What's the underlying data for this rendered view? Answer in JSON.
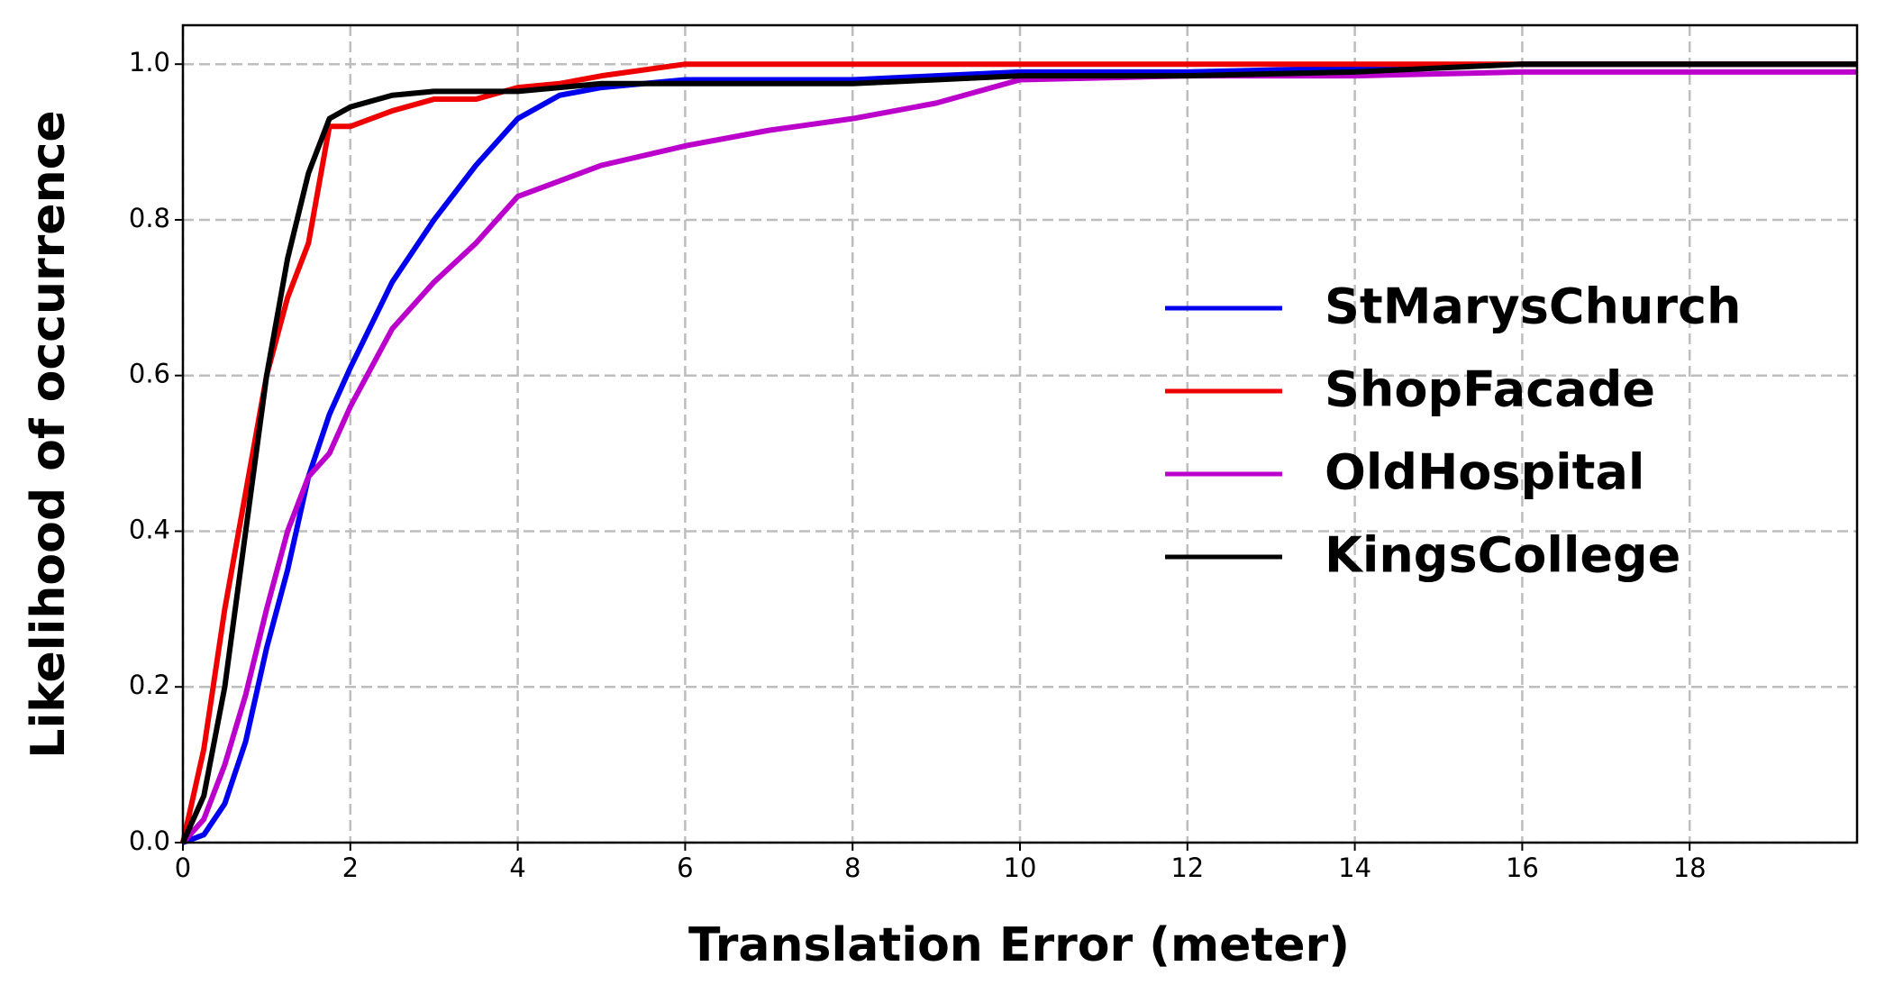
{
  "chart_data": {
    "type": "line",
    "xlabel": "Translation Error (meter)",
    "ylabel": "Likelihood of occurrence",
    "x": [
      0,
      0.25,
      0.5,
      0.75,
      1,
      1.25,
      1.5,
      1.75,
      2,
      2.5,
      3,
      3.5,
      4,
      4.5,
      5,
      6,
      7,
      8,
      9,
      10,
      12,
      14,
      16,
      18,
      20
    ],
    "series": [
      {
        "name": "StMarysChurch",
        "color": "#0000ee",
        "values": [
          0,
          0.01,
          0.05,
          0.13,
          0.25,
          0.35,
          0.47,
          0.55,
          0.61,
          0.72,
          0.8,
          0.87,
          0.93,
          0.96,
          0.97,
          0.98,
          0.98,
          0.98,
          0.985,
          0.99,
          0.99,
          0.995,
          1.0,
          1.0,
          1.0
        ]
      },
      {
        "name": "ShopFacade",
        "color": "#ee0000",
        "values": [
          0,
          0.12,
          0.3,
          0.45,
          0.6,
          0.7,
          0.77,
          0.92,
          0.92,
          0.94,
          0.955,
          0.955,
          0.97,
          0.975,
          0.985,
          1.0,
          1.0,
          1.0,
          1.0,
          1.0,
          1.0,
          1.0,
          1.0,
          1.0,
          1.0
        ]
      },
      {
        "name": "OldHospital",
        "color": "#bb00cc",
        "values": [
          0,
          0.03,
          0.1,
          0.19,
          0.3,
          0.4,
          0.47,
          0.5,
          0.56,
          0.66,
          0.72,
          0.77,
          0.83,
          0.85,
          0.87,
          0.895,
          0.915,
          0.93,
          0.95,
          0.98,
          0.985,
          0.985,
          0.99,
          0.99,
          0.99
        ]
      },
      {
        "name": "KingsCollege",
        "color": "#000000",
        "values": [
          0,
          0.06,
          0.2,
          0.4,
          0.6,
          0.75,
          0.86,
          0.93,
          0.945,
          0.96,
          0.965,
          0.965,
          0.965,
          0.97,
          0.975,
          0.975,
          0.975,
          0.975,
          0.98,
          0.985,
          0.985,
          0.99,
          1.0,
          1.0,
          1.0
        ]
      }
    ],
    "xlim": [
      0,
      20
    ],
    "ylim": [
      0,
      1.05
    ],
    "xticks": [
      0,
      2,
      4,
      6,
      8,
      10,
      12,
      14,
      16,
      18
    ],
    "yticks": [
      {
        "value": 0,
        "label": "0.0"
      },
      0.2,
      0.4,
      0.6,
      0.8,
      {
        "value": 1,
        "label": "1.0"
      }
    ],
    "grid": true,
    "legend": "right"
  }
}
